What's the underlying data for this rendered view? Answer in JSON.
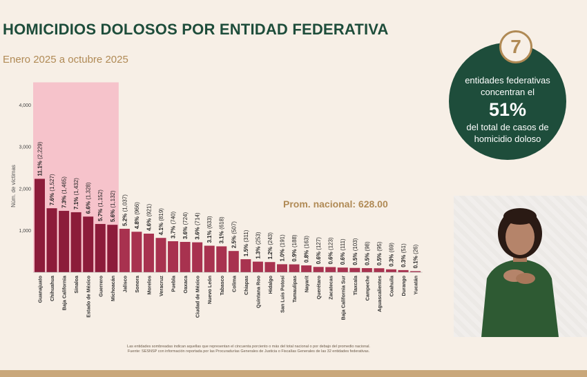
{
  "header": {
    "title": "HOMICIDIOS DOLOSOS POR ENTIDAD FEDERATIVA",
    "subtitle": "Enero 2025 a octubre 2025"
  },
  "callout": {
    "number": "7",
    "line1": "entidades federativas concentran el",
    "percent": "51%",
    "line2": "del total de casos de homicidio doloso"
  },
  "national_average_label": "Prom. nacional: 628.00",
  "footnote": {
    "line1": "Las entidades sombreadas indican aquellas que representan el cincuenta porciento o más del total nacional o por debajo del promedio nacional.",
    "line2": "Fuente: SESNSP con información reportada por las Procuradurías Generales de Justicia o Fiscalías Generales de las 32 entidades federativas."
  },
  "colors": {
    "bar_top": "#8c1c3a",
    "bar_rest": "#a8324f",
    "highlight": "#f5b8c4",
    "title_green": "#1e4d3b",
    "gold": "#b08a55"
  },
  "chart_data": {
    "type": "bar",
    "ylabel": "Núm. de víctimas",
    "ylim": [
      0,
      4400
    ],
    "yticks": [
      1000,
      2000,
      3000,
      4000
    ],
    "ytick_labels": [
      "1,000",
      "2,000",
      "3,000",
      "4,000"
    ],
    "highlight_count": 7,
    "categories": [
      "Guanajuato",
      "Chihuahua",
      "Baja California",
      "Sinaloa",
      "Estado de México",
      "Guerrero",
      "Michoacán",
      "Jalisco",
      "Sonora",
      "Morelos",
      "Veracruz",
      "Puebla",
      "Oaxaca",
      "Ciudad de México",
      "Nuevo León",
      "Tabasco",
      "Colima",
      "Chiapas",
      "Quintana Roo",
      "Hidalgo",
      "San Luis Potosí",
      "Tamaulipas",
      "Nayarit",
      "Querétaro",
      "Zacatecas",
      "Baja California Sur",
      "Tlaxcala",
      "Campeche",
      "Aguascalientes",
      "Coahuila",
      "Durango",
      "Yucatán"
    ],
    "values": [
      2229,
      1527,
      1465,
      1432,
      1328,
      1152,
      1132,
      1037,
      966,
      921,
      819,
      740,
      724,
      714,
      633,
      618,
      507,
      311,
      253,
      243,
      191,
      188,
      163,
      127,
      123,
      111,
      103,
      98,
      95,
      69,
      51,
      26
    ],
    "pct_labels": [
      "11.1%",
      "7.6%",
      "7.3%",
      "7.1%",
      "6.6%",
      "5.7%",
      "5.6%",
      "5.2%",
      "4.8%",
      "4.6%",
      "4.1%",
      "3.7%",
      "3.6%",
      "3.6%",
      "3.1%",
      "3.1%",
      "2.5%",
      "1.5%",
      "1.3%",
      "1.2%",
      "1.0%",
      "0.9%",
      "0.8%",
      "0.6%",
      "0.6%",
      "0.6%",
      "0.5%",
      "0.5%",
      "0.5%",
      "0.3%",
      "0.3%",
      "0.1%"
    ],
    "value_labels": [
      "(2,229)",
      "(1,527)",
      "(1,465)",
      "(1,432)",
      "(1,328)",
      "(1,152)",
      "(1,132)",
      "(1,037)",
      "(966)",
      "(921)",
      "(819)",
      "(740)",
      "(724)",
      "(714)",
      "(633)",
      "(618)",
      "(507)",
      "(311)",
      "(253)",
      "(243)",
      "(191)",
      "(188)",
      "(163)",
      "(127)",
      "(123)",
      "(111)",
      "(103)",
      "(98)",
      "(95)",
      "(69)",
      "(51)",
      "(26)"
    ]
  }
}
